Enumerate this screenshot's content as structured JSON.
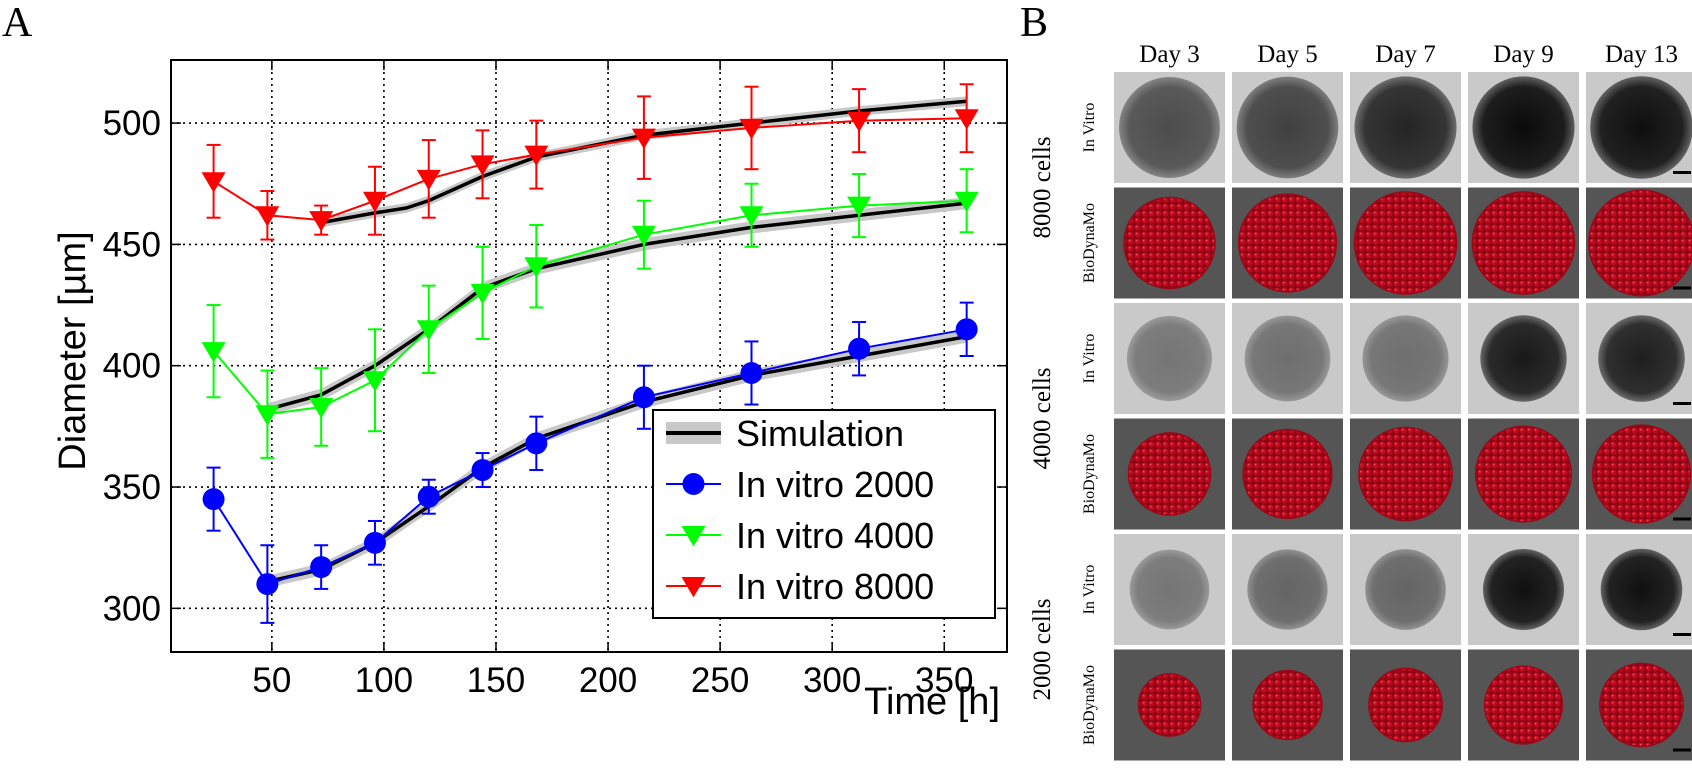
{
  "panels": {
    "a_letter": "A",
    "b_letter": "B"
  },
  "chart_data": {
    "type": "line",
    "title": "",
    "xlabel": "Time [h]",
    "ylabel": "Diameter [µm]",
    "xlim": [
      5,
      378
    ],
    "ylim": [
      282,
      526
    ],
    "xticks": [
      50,
      100,
      150,
      200,
      250,
      300,
      350
    ],
    "yticks": [
      300,
      350,
      400,
      450,
      500
    ],
    "grid": true,
    "legend_position": "bottom-right",
    "series": [
      {
        "name": "Simulation",
        "kind": "simulation",
        "color": "#000000",
        "band_color": "#c8c8c8",
        "band_halfwidth": 2.5,
        "x": [
          48,
          72,
          96,
          120,
          144,
          168,
          216,
          264,
          312,
          360
        ],
        "y": [
          311,
          316,
          327,
          342,
          358,
          370,
          385,
          396,
          404,
          412
        ]
      },
      {
        "name": "Simulation",
        "kind": "simulation",
        "color": "#000000",
        "band_color": "#c8c8c8",
        "band_halfwidth": 2.5,
        "x": [
          48,
          72,
          96,
          120,
          144,
          168,
          216,
          264,
          312,
          360
        ],
        "y": [
          382,
          388,
          400,
          415,
          432,
          440,
          450,
          457,
          462,
          467
        ]
      },
      {
        "name": "Simulation",
        "kind": "simulation",
        "color": "#000000",
        "band_color": "#c8c8c8",
        "band_halfwidth": 2.0,
        "x": [
          72,
          96,
          110,
          120,
          144,
          168,
          216,
          264,
          312,
          360
        ],
        "y": [
          459,
          463,
          465,
          468,
          478,
          486,
          495,
          500,
          505,
          509
        ]
      },
      {
        "name": "In vitro 2000",
        "kind": "invitro",
        "color": "#0000ff",
        "marker": "circle",
        "x": [
          24,
          48,
          72,
          96,
          120,
          144,
          168,
          216,
          264,
          312,
          360
        ],
        "y": [
          345,
          310,
          317,
          327,
          346,
          357,
          368,
          387,
          397,
          407,
          415
        ],
        "err": [
          13,
          16,
          9,
          9,
          7,
          7,
          11,
          13,
          13,
          11,
          11
        ]
      },
      {
        "name": "In vitro 4000",
        "kind": "invitro",
        "color": "#00ff00",
        "marker": "triangle-down",
        "x": [
          24,
          48,
          72,
          96,
          120,
          144,
          168,
          216,
          264,
          312,
          360
        ],
        "y": [
          406,
          380,
          383,
          394,
          415,
          430,
          441,
          454,
          462,
          466,
          468
        ],
        "err": [
          19,
          18,
          16,
          21,
          18,
          19,
          17,
          14,
          13,
          13,
          13
        ]
      },
      {
        "name": "In vitro 8000",
        "kind": "invitro",
        "color": "#ff0000",
        "marker": "triangle-down",
        "x": [
          24,
          48,
          72,
          96,
          120,
          144,
          168,
          216,
          264,
          312,
          360
        ],
        "y": [
          476,
          462,
          460,
          468,
          477,
          483,
          487,
          494,
          498,
          501,
          502
        ],
        "err": [
          15,
          10,
          6,
          14,
          16,
          14,
          14,
          17,
          17,
          13,
          14
        ]
      }
    ],
    "legend": [
      {
        "label": "Simulation",
        "kind": "simulation",
        "color": "#000000"
      },
      {
        "label": "In vitro 2000",
        "kind": "invitro",
        "color": "#0000ff",
        "marker": "circle"
      },
      {
        "label": "In vitro 4000",
        "kind": "invitro",
        "color": "#00ff00",
        "marker": "triangle-down"
      },
      {
        "label": "In vitro 8000",
        "kind": "invitro",
        "color": "#ff0000",
        "marker": "triangle-down"
      }
    ]
  },
  "grid_panel": {
    "columns": [
      "Day 3",
      "Day 5",
      "Day 7",
      "Day 9",
      "Day 13"
    ],
    "groups": [
      {
        "label": "8000 cells",
        "size": 8000,
        "vitro_darkness": [
          0.62,
          0.68,
          0.82,
          0.95,
          0.93
        ],
        "model_scale": [
          0.82,
          0.88,
          0.92,
          0.92,
          0.95
        ]
      },
      {
        "label": "4000 cells",
        "size": 4000,
        "vitro_darkness": [
          0.42,
          0.45,
          0.45,
          0.88,
          0.85
        ],
        "model_scale": [
          0.74,
          0.8,
          0.84,
          0.86,
          0.88
        ]
      },
      {
        "label": "2000 cells",
        "size": 2000,
        "vitro_darkness": [
          0.42,
          0.5,
          0.5,
          0.92,
          0.92
        ],
        "model_scale": [
          0.56,
          0.62,
          0.66,
          0.7,
          0.75
        ]
      }
    ],
    "row_labels": {
      "vitro": "In Vitro",
      "model": "BioDynaMo"
    },
    "colors": {
      "vitro_bg": "#c9c9c9",
      "model_bg": "#555555",
      "cell": "#c20a1e"
    }
  }
}
